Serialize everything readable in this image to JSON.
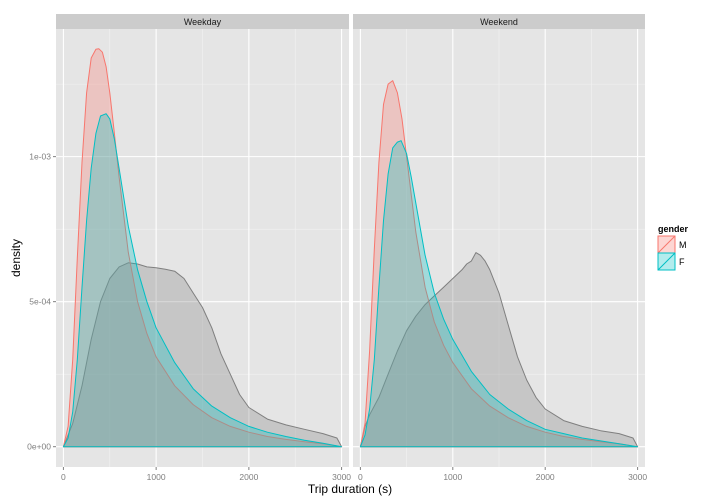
{
  "chart_data": {
    "type": "area",
    "subtype": "density",
    "title": "",
    "xlabel": "Trip duration (s)",
    "ylabel": "density",
    "xlim": [
      -80,
      3080
    ],
    "ylim": [
      -7e-05,
      0.00144
    ],
    "x_ticks": [
      0,
      1000,
      2000,
      3000
    ],
    "x_tick_labels": [
      "0",
      "1000",
      "2000",
      "3000"
    ],
    "y_ticks": [
      0,
      0.0005,
      0.001
    ],
    "y_tick_labels": [
      "0e+00",
      "5e-04",
      "1e-03"
    ],
    "grid": true,
    "legend": {
      "title": "gender",
      "position": "right",
      "entries": [
        {
          "label": "M",
          "color": "#F8766D"
        },
        {
          "label": "F",
          "color": "#00BFC4"
        }
      ]
    },
    "facets": [
      {
        "label": "Weekday",
        "series": [
          {
            "name": "NA",
            "color": "#7f7f7f",
            "x": [
              0,
              100,
              200,
              300,
              400,
              500,
              600,
              700,
              800,
              900,
              1000,
              1100,
              1200,
              1300,
              1400,
              1500,
              1600,
              1700,
              1800,
              1900,
              2000,
              2200,
              2400,
              2600,
              2800,
              2950,
              3000
            ],
            "y": [
              0,
              8e-05,
              0.00021,
              0.00037,
              0.0005,
              0.00058,
              0.00062,
              0.000634,
              0.00063,
              0.00062,
              0.000617,
              0.000612,
              0.000605,
              0.00058,
              0.00053,
              0.00048,
              0.00041,
              0.00032,
              0.00025,
              0.00018,
              0.000135,
              9.5e-05,
              7.5e-05,
              6e-05,
              4.5e-05,
              3e-05,
              0
            ]
          },
          {
            "name": "M",
            "color": "#F8766D",
            "x": [
              0,
              50,
              100,
              150,
              200,
              250,
              300,
              350,
              382,
              420,
              460,
              500,
              550,
              600,
              700,
              800,
              900,
              1000,
              1200,
              1400,
              1600,
              1800,
              2000,
              2200,
              2400,
              2600,
              2800,
              3000
            ],
            "y": [
              0,
              7e-05,
              0.0003,
              0.00065,
              0.00098,
              0.00122,
              0.00134,
              0.00137,
              0.001372,
              0.00136,
              0.00131,
              0.00122,
              0.00108,
              0.00093,
              0.00067,
              0.0005,
              0.00039,
              0.00031,
              0.00021,
              0.000145,
              0.0001,
              7e-05,
              5e-05,
              3.5e-05,
              2.5e-05,
              1.7e-05,
              1e-05,
              0
            ]
          },
          {
            "name": "F",
            "color": "#00BFC4",
            "x": [
              0,
              50,
              100,
              150,
              200,
              250,
              300,
              350,
              400,
              460,
              500,
              550,
              600,
              700,
              800,
              900,
              1000,
              1200,
              1400,
              1600,
              1800,
              2000,
              2200,
              2400,
              2600,
              2800,
              3000
            ],
            "y": [
              0,
              3e-05,
              0.00012,
              0.0003,
              0.00055,
              0.00078,
              0.00096,
              0.00108,
              0.00114,
              0.001148,
              0.00113,
              0.00106,
              0.00096,
              0.00076,
              0.00061,
              0.0005,
              0.00041,
              0.00029,
              0.0002,
              0.00014,
              0.0001,
              7e-05,
              5e-05,
              3.5e-05,
              2.2e-05,
              1.2e-05,
              0
            ]
          }
        ]
      },
      {
        "label": "Weekend",
        "series": [
          {
            "name": "NA",
            "color": "#7f7f7f",
            "x": [
              0,
              50,
              100,
              200,
              300,
              400,
              500,
              600,
              700,
              800,
              900,
              1000,
              1100,
              1150,
              1200,
              1250,
              1300,
              1350,
              1400,
              1500,
              1600,
              1700,
              1800,
              1900,
              2000,
              2200,
              2400,
              2600,
              2800,
              2950,
              3000
            ],
            "y": [
              0,
              7e-05,
              0.00011,
              0.00017,
              0.00025,
              0.00033,
              0.0004,
              0.00045,
              0.00049,
              0.00052,
              0.00055,
              0.00058,
              0.00061,
              0.00063,
              0.00064,
              0.000669,
              0.00066,
              0.00064,
              0.00061,
              0.00053,
              0.00042,
              0.00031,
              0.00023,
              0.00017,
              0.00013,
              9e-05,
              7e-05,
              5.5e-05,
              4.5e-05,
              3e-05,
              0
            ]
          },
          {
            "name": "M",
            "color": "#F8766D",
            "x": [
              0,
              50,
              100,
              150,
              200,
              250,
              300,
              350,
              400,
              450,
              500,
              550,
              600,
              700,
              800,
              900,
              1000,
              1200,
              1400,
              1600,
              1800,
              2000,
              2200,
              2400,
              2600,
              2800,
              3000
            ],
            "y": [
              0,
              8e-05,
              0.00033,
              0.00068,
              0.00098,
              0.00118,
              0.00125,
              0.001262,
              0.00122,
              0.00113,
              0.001,
              0.00087,
              0.00074,
              0.00055,
              0.00043,
              0.00035,
              0.00029,
              0.0002,
              0.00014,
              0.0001,
              7e-05,
              5e-05,
              3.5e-05,
              2.5e-05,
              1.7e-05,
              1e-05,
              0
            ]
          },
          {
            "name": "F",
            "color": "#00BFC4",
            "x": [
              0,
              50,
              100,
              150,
              200,
              250,
              300,
              350,
              400,
              440,
              500,
              550,
              600,
              700,
              800,
              900,
              1000,
              1200,
              1400,
              1600,
              1800,
              2000,
              2200,
              2400,
              2600,
              2800,
              3000
            ],
            "y": [
              0,
              4e-05,
              0.00013,
              0.0003,
              0.00055,
              0.00078,
              0.00094,
              0.00103,
              0.00105,
              0.001055,
              0.00101,
              0.00093,
              0.00084,
              0.00066,
              0.00053,
              0.00044,
              0.00037,
              0.00026,
              0.00018,
              0.00013,
              9e-05,
              6e-05,
              4.5e-05,
              3e-05,
              2e-05,
              1e-05,
              0
            ]
          }
        ]
      }
    ]
  }
}
